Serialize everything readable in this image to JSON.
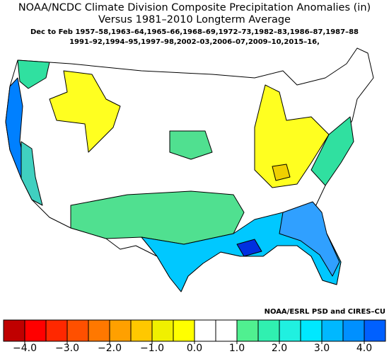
{
  "header": {
    "title": "NOAA/NCDC Climate Division Composite Precipitation Anomalies (in)",
    "subtitle": "Versus 1981–2010 Longterm Average",
    "period_line1": "Dec to Feb   1957–58,1963–64,1965–66,1968–69,1972–73,1982–83,1986–87,1987–88",
    "period_line2": "1991–92,1994–95,1997–98,2002–03,2006–07,2009–10,2015–16,"
  },
  "credit": "NOAA/ESRL PSD and CIRES–CU",
  "colorbar": {
    "lim": [
      -4.5,
      4.5
    ],
    "colors": [
      "#c00000",
      "#ff0000",
      "#ff2800",
      "#ff5000",
      "#ff7800",
      "#ffa000",
      "#ffc800",
      "#f0f000",
      "#ffff00",
      "#ffffff",
      "#ffffff",
      "#50f090",
      "#30f0b0",
      "#20f0e0",
      "#00e8ff",
      "#00b8ff",
      "#0090ff",
      "#0060ff"
    ],
    "ticks": [
      {
        "value": -4,
        "label": "−4.0"
      },
      {
        "value": -3,
        "label": "−3.0"
      },
      {
        "value": -2,
        "label": "−2.0"
      },
      {
        "value": -1,
        "label": "−1.0"
      },
      {
        "value": 0,
        "label": "0.0"
      },
      {
        "value": 1,
        "label": "1.0"
      },
      {
        "value": 2,
        "label": "2.0"
      },
      {
        "value": 3,
        "label": "3.0"
      },
      {
        "value": 4,
        "label": "4.0"
      }
    ]
  }
}
